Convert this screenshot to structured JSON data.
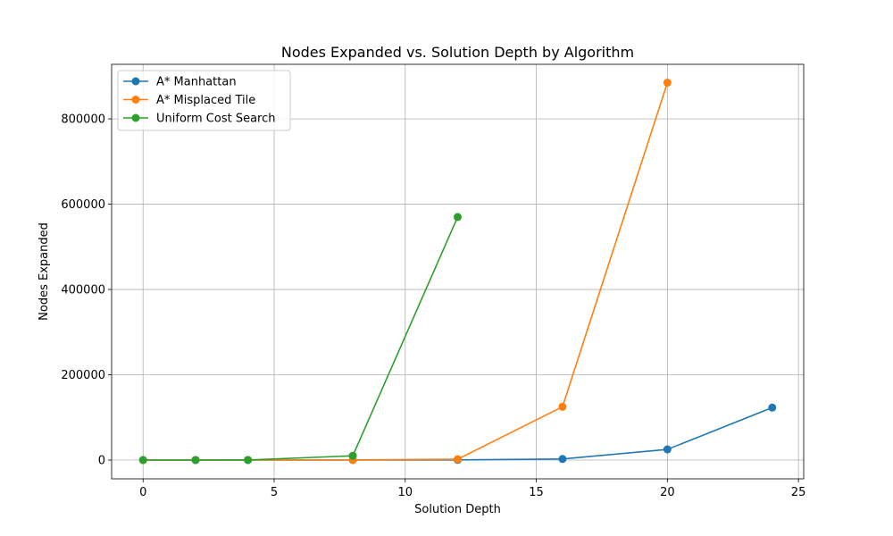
{
  "chart_data": {
    "type": "line",
    "title": "Nodes Expanded vs. Solution Depth by Algorithm",
    "xlabel": "Solution Depth",
    "ylabel": "Nodes Expanded",
    "xlim": [
      -1.2,
      25.2
    ],
    "ylim": [
      -44000,
      928000
    ],
    "xticks": [
      0,
      5,
      10,
      15,
      20,
      25
    ],
    "yticks": [
      0,
      200000,
      400000,
      600000,
      800000
    ],
    "grid": true,
    "legend_position": "top-left",
    "series": [
      {
        "name": "A* Manhattan",
        "color": "#1f77b4",
        "x": [
          0,
          2,
          4,
          8,
          12,
          16,
          20,
          24
        ],
        "y": [
          0,
          2,
          8,
          60,
          400,
          2500,
          25000,
          123000
        ]
      },
      {
        "name": "A* Misplaced Tile",
        "color": "#ff7f0e",
        "x": [
          0,
          2,
          4,
          8,
          12,
          16,
          20
        ],
        "y": [
          0,
          3,
          15,
          300,
          2000,
          125000,
          885000
        ]
      },
      {
        "name": "Uniform Cost Search",
        "color": "#2ca02c",
        "x": [
          0,
          2,
          4,
          8,
          12
        ],
        "y": [
          0,
          10,
          150,
          10000,
          570000
        ]
      }
    ]
  }
}
